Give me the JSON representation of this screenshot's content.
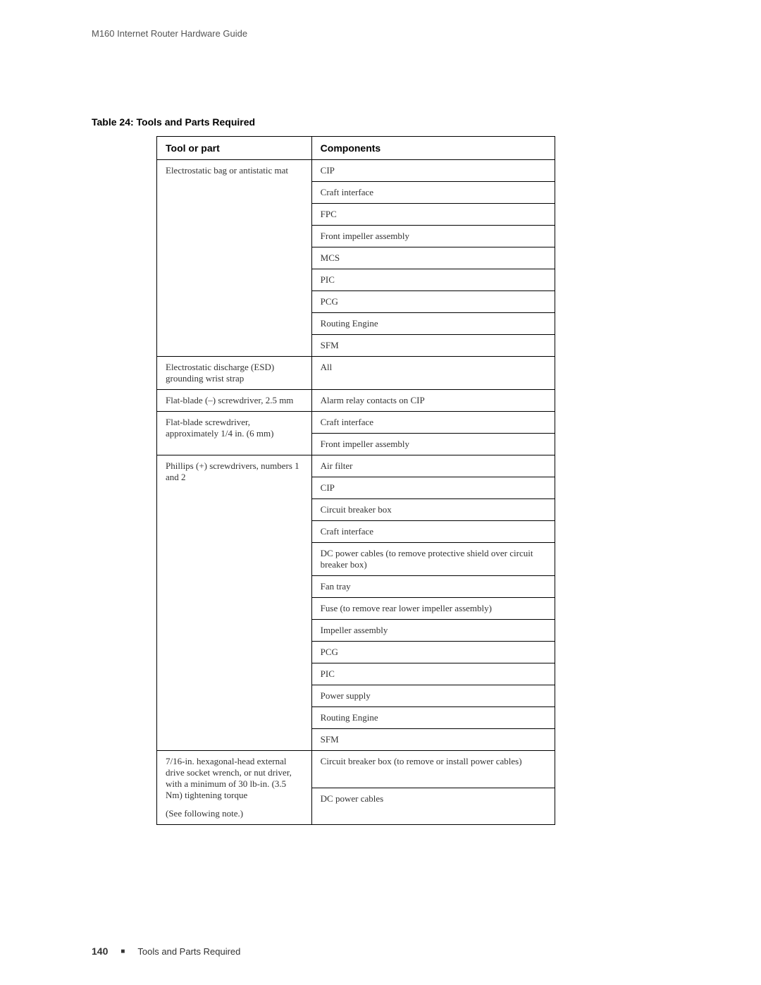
{
  "header": {
    "title": "M160 Internet Router Hardware Guide"
  },
  "table": {
    "caption": "Table 24:  Tools and Parts Required",
    "columns": [
      "Tool or part",
      "Components"
    ],
    "rows": [
      {
        "tool": "Electrostatic bag or antistatic mat",
        "components": [
          "CIP",
          "Craft interface",
          "FPC",
          "Front impeller assembly",
          "MCS",
          "PIC",
          "PCG",
          "Routing Engine",
          "SFM"
        ]
      },
      {
        "tool": "Electrostatic discharge (ESD) grounding wrist strap",
        "components": [
          "All"
        ]
      },
      {
        "tool": "Flat-blade (–) screwdriver, 2.5 mm",
        "components": [
          "Alarm relay contacts on CIP"
        ]
      },
      {
        "tool": "Flat-blade screwdriver, approximately 1/4 in. (6 mm)",
        "components": [
          "Craft interface",
          "Front impeller assembly"
        ]
      },
      {
        "tool": "Phillips (+) screwdrivers, numbers 1 and 2",
        "components": [
          "Air filter",
          "CIP",
          "Circuit breaker box",
          "Craft interface",
          "DC power cables (to remove protective shield over circuit breaker box)",
          "Fan tray",
          "Fuse (to remove rear lower impeller assembly)",
          "Impeller assembly",
          "PCG",
          "PIC",
          "Power supply",
          "Routing Engine",
          "SFM"
        ]
      },
      {
        "tool": "7/16-in. hexagonal-head external drive socket wrench, or nut driver, with a minimum of 30 lb-in. (3.5 Nm) tightening torque",
        "note": "(See following note.)",
        "components": [
          "Circuit breaker box (to remove or install power cables)",
          "DC power cables"
        ]
      }
    ]
  },
  "footer": {
    "page_number": "140",
    "section": "Tools and Parts Required"
  }
}
